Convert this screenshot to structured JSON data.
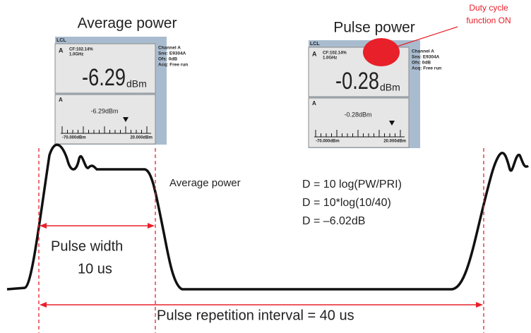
{
  "titles": {
    "average": "Average power",
    "pulse": "Pulse power"
  },
  "annotation": {
    "line1": "Duty cycle",
    "line2": "function ON"
  },
  "meters": [
    {
      "lcl": "LCL",
      "channel": "A",
      "cf": "CF:102.14%",
      "freq": "1.0GHz",
      "reading": "-6.29",
      "unit": "dBm",
      "info": [
        "Channel A",
        "Sns: E9304A",
        "Ofs: 0dB",
        "Acq: Free run"
      ],
      "lower_channel": "A",
      "lower_reading": "-6.29dBm",
      "scale_min": "-70.000dBm",
      "scale_max": "20.000dBm"
    },
    {
      "lcl": "LCL",
      "channel": "A",
      "cf": "CF:102.14%",
      "freq": "1.0GHz",
      "reading": "-0.28",
      "unit": "dBm",
      "info": [
        "Channel A",
        "Sns: E9304A",
        "Ofs: 0dB",
        "Acq: Free run"
      ],
      "lower_channel": "A",
      "lower_reading": "-0.28dBm",
      "scale_min": "-70.000dBm",
      "scale_max": "20.000dBm"
    }
  ],
  "labels": {
    "average_power": "Average power",
    "pulse_width": "Pulse width",
    "pulse_width_value": "10 us",
    "pri": "Pulse repetition interval = 40 us"
  },
  "formulas": [
    "D = 10 log(PW/PRI)",
    "D = 10*log(10/40)",
    "D = –6.02dB"
  ]
}
